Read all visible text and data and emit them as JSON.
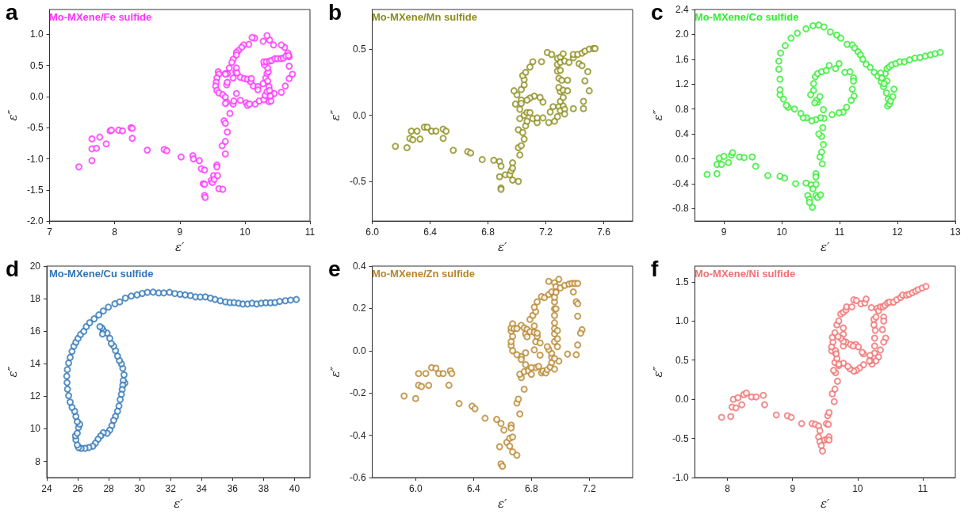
{
  "chart_data": [
    {
      "type": "scatter",
      "title": "a",
      "xlabel": "ε′",
      "ylabel": "ε″",
      "xlim": [
        7,
        11
      ],
      "ylim": [
        -2,
        1.4
      ],
      "xticks": [
        7,
        8,
        9,
        10,
        11
      ],
      "yticks": [
        {
          "value": -2,
          "label": "-2.0"
        },
        {
          "value": -1.5,
          "label": "-1.5"
        },
        {
          "value": -1,
          "label": "-1.0"
        },
        {
          "value": -0.5,
          "label": "-0.5"
        },
        {
          "value": 0,
          "label": "0.0"
        },
        {
          "value": 0.5,
          "label": "0.5"
        },
        {
          "value": 1,
          "label": "1.0"
        }
      ],
      "marker": "circle",
      "legend": "top left",
      "grid": false,
      "series": [
        {
          "name": "Mo-MXene/Fe sulfide",
          "color": "#ff33ff",
          "x": [
            7.45,
            7.65,
            7.65,
            7.65,
            7.72,
            7.77,
            7.87,
            7.93,
            7.95,
            8.06,
            8.12,
            8.25,
            8.27,
            8.27,
            8.5,
            8.76,
            8.8,
            9.02,
            9.2,
            9.21,
            9.3,
            9.33,
            9.38,
            9.36,
            9.38,
            9.38,
            9.39,
            9.48,
            9.5,
            9.52,
            9.53,
            9.57,
            9.57,
            9.58,
            9.6,
            9.66,
            9.65,
            9.7,
            9.7,
            9.73,
            9.68,
            9.7,
            9.77,
            9.82,
            9.83,
            9.87,
            9.93,
            10.02,
            10.04,
            10.07,
            10.16,
            10.22,
            10.29,
            10.31,
            10.34,
            10.37,
            10.4,
            10.41,
            10.45,
            10.56,
            10.62,
            10.68,
            10.73,
            10.68,
            10.68,
            10.66,
            10.61,
            10.56,
            10.44,
            10.38,
            10.34,
            10.28,
            10.15,
            10.11,
            10.06,
            9.98,
            9.95,
            9.9,
            9.87,
            9.87,
            9.82,
            9.8,
            9.76,
            9.73,
            9.7,
            9.59,
            9.6,
            9.57,
            9.56,
            9.55,
            9.57,
            9.6,
            9.66,
            9.7,
            9.72,
            9.7,
            9.72,
            9.73,
            9.7,
            9.82,
            9.86,
            9.87,
            9.88,
            9.93,
            9.99,
            10.04,
            10.09,
            10.1,
            10.13,
            10.2,
            10.2,
            10.28,
            10.32,
            10.34,
            10.36,
            10.35,
            10.3,
            10.29,
            10.33,
            10.38,
            10.41,
            10.46,
            10.5,
            10.55,
            10.59,
            10.63,
            10.67,
            10.35,
            10.37,
            10.38,
            10.39
          ],
          "values": [
            -1.13,
            -1.03,
            -0.84,
            -0.68,
            -0.83,
            -0.65,
            -0.76,
            -0.55,
            -0.54,
            -0.54,
            -0.55,
            -0.5,
            -0.51,
            -0.67,
            -0.86,
            -0.85,
            -0.87,
            -0.97,
            -0.95,
            -1.0,
            -1.03,
            -1.16,
            -1.18,
            -1.4,
            -1.41,
            -1.59,
            -1.62,
            -1.35,
            -1.38,
            -1.27,
            -1.33,
            -1.1,
            -1.13,
            -1.27,
            -1.48,
            -1.49,
            -0.79,
            -0.72,
            -0.92,
            -0.57,
            -0.39,
            -0.43,
            -0.27,
            -0.12,
            -0.07,
            0.05,
            -0.06,
            -0.1,
            -0.14,
            -0.12,
            -0.12,
            -0.07,
            -0.05,
            0.02,
            0.08,
            -0.08,
            -0.07,
            0.03,
            0.05,
            0.07,
            0.17,
            0.29,
            0.36,
            0.49,
            0.64,
            0.7,
            0.79,
            0.83,
            0.83,
            0.91,
            0.98,
            0.89,
            0.94,
            0.95,
            0.84,
            0.83,
            0.79,
            0.74,
            0.71,
            0.67,
            0.6,
            0.55,
            0.46,
            0.37,
            0.37,
            0.4,
            0.36,
            0.3,
            0.23,
            0.17,
            0.1,
            0.06,
            0.03,
            -0.01,
            -0.09,
            -0.11,
            0.19,
            0.23,
            0.36,
            0.3,
            0.4,
            0.46,
            0.38,
            0.31,
            0.29,
            0.28,
            0.24,
            0.29,
            0.17,
            0.16,
            0.11,
            0.21,
            0.3,
            0.37,
            0.4,
            0.46,
            0.51,
            0.56,
            0.56,
            0.57,
            0.58,
            0.61,
            0.61,
            0.61,
            0.62,
            0.65,
            0.66,
            0.25,
            0.16,
            0.1,
            0.01
          ]
        }
      ]
    },
    {
      "type": "scatter",
      "title": "b",
      "xlabel": "ε′",
      "ylabel": "ε″",
      "xlim": [
        6,
        7.8
      ],
      "ylim": [
        -0.8,
        0.8
      ],
      "xticks": [
        {
          "value": 6,
          "label": "6.0"
        },
        6.4,
        6.8,
        7.2,
        7.6
      ],
      "yticks": [
        -0.5,
        {
          "value": 0,
          "label": "0.0"
        },
        0.5
      ],
      "marker": "circle",
      "legend": "top left",
      "grid": false,
      "series": [
        {
          "name": "Mo-MXene/Mn sulfide",
          "color": "#8c8c1e",
          "x": [
            6.16,
            6.24,
            6.27,
            6.26,
            6.28,
            6.31,
            6.33,
            6.36,
            6.38,
            6.41,
            6.44,
            6.49,
            6.49,
            6.51,
            6.56,
            6.66,
            6.68,
            6.76,
            6.84,
            6.88,
            6.88,
            6.89,
            6.89,
            6.89,
            6.92,
            6.95,
            6.96,
            6.97,
            6.97,
            6.97,
            7.01,
            7.01,
            7.02,
            7.03,
            7.01,
            7.04,
            7.05,
            7.06,
            7.07,
            7.02,
            7.05,
            7.07,
            7.09,
            7.11,
            7.14,
            7.14,
            7.18,
            7.18,
            7.16,
            7.12,
            7.09,
            7.07,
            7.03,
            7.0,
            6.98,
            6.99,
            7.02,
            7.03,
            7.03,
            7.05,
            7.05,
            7.04,
            7.06,
            7.09,
            7.11,
            7.17,
            7.21,
            7.24,
            7.22,
            7.23,
            7.25,
            7.26,
            7.28,
            7.29,
            7.3,
            7.32,
            7.3,
            7.3,
            7.29,
            7.29,
            7.28,
            7.28,
            7.28,
            7.3,
            7.3,
            7.3,
            7.31,
            7.32,
            7.32,
            7.33,
            7.33,
            7.32,
            7.33,
            7.36,
            7.39,
            7.39,
            7.42,
            7.45,
            7.47,
            7.5,
            7.53,
            7.54,
            7.43,
            7.45,
            7.49,
            7.47,
            7.5,
            7.46,
            7.46,
            7.39,
            7.35,
            7.35
          ],
          "values": [
            -0.235,
            -0.245,
            -0.12,
            -0.175,
            -0.185,
            -0.12,
            -0.18,
            -0.09,
            -0.09,
            -0.12,
            -0.12,
            -0.175,
            -0.105,
            -0.12,
            -0.265,
            -0.275,
            -0.285,
            -0.335,
            -0.34,
            -0.35,
            -0.465,
            -0.385,
            -0.55,
            -0.56,
            -0.45,
            -0.45,
            -0.42,
            -0.36,
            -0.4,
            -0.49,
            -0.5,
            -0.245,
            -0.3,
            -0.23,
            -0.11,
            -0.13,
            -0.18,
            -0.08,
            -0.045,
            -0.025,
            0.0,
            0.02,
            0.02,
            -0.025,
            -0.055,
            -0.02,
            -0.02,
            0.1,
            0.135,
            0.145,
            0.13,
            0.115,
            0.115,
            0.155,
            0.185,
            0.085,
            0.045,
            0.09,
            0.195,
            0.23,
            0.27,
            0.3,
            0.325,
            0.365,
            0.405,
            0.405,
            0.475,
            0.46,
            -0.055,
            0.025,
            0.065,
            -0.045,
            -0.01,
            0.065,
            0.035,
            0.07,
            0.105,
            0.18,
            0.21,
            0.28,
            0.335,
            0.385,
            0.43,
            0.44,
            0.4,
            0.34,
            0.265,
            0.19,
            0.135,
            0.045,
            0.01,
            0.465,
            0.41,
            0.4,
            0.435,
            0.46,
            0.46,
            0.47,
            0.485,
            0.5,
            0.505,
            0.505,
            0.39,
            0.375,
            0.33,
            0.26,
            0.185,
            0.105,
            0.05,
            0.05,
            0.185,
            0.265
          ]
        }
      ]
    },
    {
      "type": "scatter",
      "title": "c",
      "xlabel": "ε′",
      "ylabel": "ε″",
      "xlim": [
        8.5,
        13
      ],
      "ylim": [
        -1,
        2.4
      ],
      "xticks": [
        9,
        10,
        11,
        12,
        13
      ],
      "yticks": [
        -0.8,
        -0.4,
        {
          "value": 0,
          "label": "0.0"
        },
        0.4,
        0.8,
        1.2,
        1.6,
        {
          "value": 2,
          "label": "2.0"
        },
        2.4
      ],
      "marker": "circle",
      "legend": "top left",
      "grid": false,
      "series": [
        {
          "name": "Mo-MXene/Co sulfide",
          "color": "#33ee33",
          "x": [
            8.71,
            8.88,
            8.88,
            8.96,
            8.92,
            9.0,
            9.08,
            9.13,
            9.15,
            9.27,
            9.35,
            9.49,
            9.55,
            9.76,
            9.97,
            10.05,
            10.24,
            10.42,
            10.45,
            10.48,
            10.48,
            10.53,
            10.51,
            10.54,
            10.59,
            10.59,
            10.62,
            10.67,
            10.59,
            10.59,
            10.7,
            10.66,
            10.69,
            10.72,
            10.71,
            10.69,
            10.64,
            10.73,
            10.72,
            10.67,
            10.59,
            10.52,
            10.43,
            10.37,
            10.33,
            10.22,
            10.11,
            10.08,
            10.03,
            9.97,
            9.97,
            9.97,
            9.95,
            9.95,
            9.98,
            10.06,
            10.16,
            10.27,
            10.42,
            10.54,
            10.64,
            10.73,
            10.84,
            10.95,
            11.02,
            11.13,
            11.22,
            11.26,
            11.32,
            11.36,
            11.4,
            11.46,
            11.53,
            11.6,
            11.66,
            11.72,
            11.76,
            11.81,
            11.84,
            11.83,
            11.86,
            11.88,
            11.92,
            11.94,
            11.82,
            11.79,
            11.82,
            11.86,
            11.9,
            11.97,
            12.04,
            12.12,
            12.21,
            12.3,
            12.39,
            12.48,
            12.57,
            12.65,
            12.74,
            11.71,
            11.73,
            11.77,
            10.55,
            10.5,
            10.55,
            10.58,
            10.62,
            10.69,
            10.77,
            10.82,
            10.93,
            10.99,
            11.09,
            11.18,
            11.24,
            11.24,
            11.22,
            11.25,
            11.2,
            11.12,
            11.06,
            10.99,
            10.87,
            10.62,
            10.6,
            10.66,
            10.57
          ],
          "values": [
            -0.25,
            -0.24,
            -0.09,
            -0.09,
            0.01,
            0.04,
            -0.06,
            0.06,
            0.1,
            0.03,
            0.02,
            0.03,
            -0.12,
            -0.27,
            -0.28,
            -0.31,
            -0.4,
            -0.39,
            -0.59,
            -0.65,
            -0.7,
            -0.78,
            -0.42,
            -0.48,
            -0.41,
            -0.59,
            -0.62,
            -0.58,
            -0.24,
            -0.29,
            -0.08,
            0.03,
            0.11,
            0.23,
            0.5,
            0.36,
            0.4,
            0.65,
            0.79,
            0.66,
            0.63,
            0.61,
            0.66,
            0.66,
            0.73,
            0.8,
            0.83,
            0.86,
            0.96,
            1.03,
            1.11,
            1.28,
            1.44,
            1.57,
            1.7,
            1.82,
            1.94,
            2.02,
            2.09,
            2.14,
            2.15,
            2.12,
            2.04,
            1.99,
            1.94,
            1.84,
            1.83,
            1.78,
            1.72,
            1.67,
            1.6,
            1.52,
            1.47,
            1.39,
            1.33,
            1.24,
            1.16,
            1.06,
            0.96,
            0.85,
            0.88,
            0.93,
            1.0,
            1.12,
            1.25,
            1.37,
            1.45,
            1.48,
            1.51,
            1.53,
            1.56,
            1.56,
            1.59,
            1.62,
            1.63,
            1.65,
            1.67,
            1.69,
            1.71,
            1.38,
            1.3,
            1.21,
            1.1,
            1.03,
            1.21,
            1.32,
            1.37,
            1.4,
            1.42,
            1.5,
            1.45,
            1.53,
            1.39,
            1.4,
            1.3,
            1.25,
            1.12,
            1.01,
            0.94,
            0.83,
            0.75,
            0.74,
            0.71,
            0.91,
            0.94,
            1.0,
            0.9
          ]
        }
      ]
    },
    {
      "type": "scatter",
      "title": "d",
      "xlabel": "ε′",
      "ylabel": "ε″",
      "xlim": [
        24,
        41
      ],
      "ylim": [
        7,
        20
      ],
      "xticks": [
        24,
        26,
        28,
        30,
        32,
        34,
        36,
        38,
        40
      ],
      "yticks": [
        8,
        10,
        12,
        14,
        16,
        18,
        20
      ],
      "marker": "circle",
      "legend": "top left",
      "grid": false,
      "series": [
        {
          "name": "Mo-MXene/Cu sulfide",
          "color": "#2e75b6",
          "x": [
            29.04,
            28.94,
            28.99,
            28.91,
            28.82,
            28.69,
            28.57,
            28.44,
            28.32,
            28.17,
            28.07,
            27.9,
            27.65,
            27.56,
            27.43,
            27.6,
            28.91,
            28.87,
            28.82,
            28.74,
            28.66,
            28.57,
            28.44,
            28.32,
            28.2,
            28.07,
            27.9,
            27.65,
            27.48,
            27.31,
            27.14,
            26.97,
            26.72,
            26.47,
            26.22,
            26.05,
            25.97,
            25.88,
            25.85,
            25.97,
            26.05,
            26.13,
            25.97,
            25.88,
            25.8,
            25.63,
            25.51,
            25.41,
            25.34,
            25.31,
            25.29,
            25.33,
            25.41,
            25.51,
            25.63,
            25.75,
            25.88,
            26.02,
            26.18,
            26.39,
            26.55,
            26.77,
            27.06,
            27.36,
            27.65,
            27.98,
            28.4,
            28.71,
            29.08,
            29.46,
            29.83,
            30.17,
            30.5,
            30.87,
            31.23,
            31.56,
            31.93,
            32.27,
            32.61,
            32.94,
            33.28,
            33.61,
            33.92,
            34.24,
            34.57,
            34.87,
            35.21,
            35.55,
            35.83,
            36.1,
            36.39,
            36.67,
            36.97,
            37.26,
            37.56,
            37.85,
            38.15,
            38.45,
            38.74,
            39.04,
            39.41,
            39.75,
            40.12
          ],
          "values": [
            12.81,
            12.97,
            13.32,
            13.72,
            14.0,
            14.2,
            14.47,
            14.81,
            15.08,
            15.24,
            15.56,
            15.88,
            16.04,
            16.2,
            16.28,
            15.83,
            12.68,
            12.41,
            12.12,
            11.8,
            11.4,
            11.08,
            10.76,
            10.52,
            10.2,
            9.92,
            9.73,
            9.76,
            9.57,
            9.36,
            9.12,
            8.93,
            8.85,
            8.8,
            8.8,
            8.85,
            9.01,
            9.33,
            9.57,
            9.73,
            10.08,
            10.28,
            10.44,
            10.76,
            11.08,
            11.32,
            11.64,
            12.04,
            12.44,
            12.84,
            13.24,
            13.64,
            14.04,
            14.39,
            14.76,
            15.08,
            15.32,
            15.56,
            15.8,
            15.99,
            16.28,
            16.52,
            16.76,
            17.0,
            17.24,
            17.48,
            17.68,
            17.8,
            18.03,
            18.16,
            18.23,
            18.32,
            18.39,
            18.4,
            18.35,
            18.35,
            18.39,
            18.31,
            18.27,
            18.23,
            18.19,
            18.11,
            18.1,
            18.11,
            18.03,
            17.95,
            17.87,
            17.8,
            17.76,
            17.76,
            17.72,
            17.67,
            17.67,
            17.72,
            17.67,
            17.72,
            17.75,
            17.75,
            17.76,
            17.83,
            17.87,
            17.91,
            17.95
          ]
        }
      ]
    },
    {
      "type": "scatter",
      "title": "e",
      "xlabel": "ε′",
      "ylabel": "ε″",
      "xlim": [
        5.7,
        7.5
      ],
      "ylim": [
        -0.6,
        0.4
      ],
      "xticks": [
        {
          "value": 6,
          "label": "6.0"
        },
        6.4,
        6.8,
        7.2
      ],
      "yticks": [
        -0.6,
        -0.4,
        -0.2,
        {
          "value": 0,
          "label": "0.0"
        },
        0.2,
        0.4
      ],
      "marker": "circle",
      "legend": "top left",
      "grid": false,
      "series": [
        {
          "name": "Mo-MXene/Zn sulfide",
          "color": "#b8862e",
          "x": [
            5.92,
            6.0,
            6.02,
            6.04,
            6.02,
            6.07,
            6.09,
            6.11,
            6.14,
            6.16,
            6.19,
            6.23,
            6.24,
            6.25,
            6.3,
            6.39,
            6.41,
            6.48,
            6.56,
            6.59,
            6.58,
            6.61,
            6.59,
            6.6,
            6.63,
            6.65,
            6.65,
            6.66,
            6.66,
            6.67,
            6.67,
            6.7,
            6.72,
            6.7,
            6.71,
            6.75,
            6.73,
            6.72,
            6.75,
            6.76,
            6.78,
            6.76,
            6.73,
            6.73,
            6.7,
            6.67,
            6.66,
            6.66,
            6.67,
            6.66,
            6.66,
            6.67,
            6.68,
            6.7,
            6.73,
            6.75,
            6.76,
            6.77,
            6.77,
            6.79,
            6.82,
            6.83,
            6.82,
            6.83,
            6.8,
            6.8,
            6.85,
            6.87,
            6.88,
            6.9,
            6.91,
            6.93,
            6.94,
            6.94,
            6.94,
            6.92,
            6.91,
            6.86,
            6.86,
            6.84,
            6.84,
            6.82,
            6.79,
            6.81,
            6.83,
            6.82,
            6.84,
            6.87,
            6.89,
            6.92,
            6.94,
            6.92,
            6.96,
            6.99,
            6.97,
            7.0,
            7.03,
            7.06,
            7.08,
            7.1,
            7.12,
            7.09,
            7.11,
            7.12,
            7.12,
            7.15,
            7.14,
            7.12,
            7.11,
            7.05,
            6.99,
            6.96,
            6.96,
            6.96,
            6.96,
            6.96,
            6.96,
            6.96,
            6.96,
            6.96,
            6.96,
            6.97,
            6.98,
            6.98,
            6.98,
            6.97
          ],
          "values": [
            -0.214,
            -0.226,
            -0.163,
            -0.169,
            -0.108,
            -0.108,
            -0.164,
            -0.08,
            -0.083,
            -0.108,
            -0.108,
            -0.163,
            -0.095,
            -0.108,
            -0.25,
            -0.262,
            -0.274,
            -0.319,
            -0.325,
            -0.344,
            -0.454,
            -0.375,
            -0.535,
            -0.546,
            -0.433,
            -0.451,
            -0.414,
            -0.352,
            -0.365,
            -0.408,
            -0.478,
            -0.494,
            -0.299,
            -0.247,
            -0.229,
            -0.182,
            -0.127,
            -0.111,
            -0.099,
            -0.066,
            -0.095,
            -0.01,
            -0.028,
            -0.041,
            -0.019,
            0.0,
            0.025,
            0.043,
            0.068,
            0.093,
            0.108,
            0.127,
            0.105,
            0.105,
            0.12,
            0.108,
            0.08,
            0.066,
            0.101,
            0.09,
            0.087,
            0.043,
            0.004,
            -0.08,
            -0.08,
            -0.111,
            -0.074,
            -0.105,
            -0.096,
            -0.105,
            -0.09,
            -0.077,
            -0.056,
            -0.031,
            -0.012,
            0.006,
            0.019,
            -0.021,
            0.037,
            0.068,
            0.083,
            0.117,
            0.148,
            0.167,
            0.185,
            0.206,
            0.231,
            0.256,
            0.251,
            0.266,
            0.278,
            0.328,
            0.321,
            0.338,
            0.303,
            0.297,
            0.309,
            0.315,
            0.318,
            0.318,
            0.318,
            0.278,
            0.231,
            0.222,
            0.163,
            0.099,
            0.083,
            0.027,
            -0.019,
            -0.016,
            -0.049,
            -0.037,
            -0.087,
            0.043,
            0.08,
            0.105,
            0.132,
            0.167,
            0.198,
            0.231,
            0.253,
            0.276,
            0.019,
            0.056,
            0.095,
            0.198
          ]
        }
      ]
    },
    {
      "type": "scatter",
      "title": "f",
      "xlabel": "ε′",
      "ylabel": "ε″",
      "xlim": [
        7.5,
        11.5
      ],
      "ylim": [
        -1,
        1.7
      ],
      "xticks": [
        8,
        9,
        10,
        11
      ],
      "yticks": [
        {
          "value": -1,
          "label": "-1.0"
        },
        -0.5,
        {
          "value": 0,
          "label": "0.0"
        },
        0.5,
        {
          "value": 1,
          "label": "1.0"
        },
        1.5
      ],
      "marker": "circle",
      "legend": "top left",
      "grid": false,
      "series": [
        {
          "name": "Mo-MXene/Ni sulfide",
          "color": "#f07070",
          "x": [
            7.91,
            8.05,
            8.07,
            8.13,
            8.09,
            8.16,
            8.22,
            8.25,
            8.29,
            8.37,
            8.44,
            8.55,
            8.57,
            8.75,
            8.92,
            8.98,
            9.14,
            9.3,
            9.35,
            9.4,
            9.42,
            9.4,
            9.42,
            9.44,
            9.46,
            9.49,
            9.53,
            9.56,
            9.56,
            9.52,
            9.55,
            9.54,
            9.56,
            9.64,
            9.61,
            9.65,
            9.69,
            9.66,
            9.63,
            9.65,
            9.71,
            9.68,
            9.66,
            9.6,
            9.6,
            9.62,
            9.61,
            9.65,
            9.68,
            9.71,
            9.74,
            9.78,
            9.82,
            9.83,
            9.91,
            9.94,
            9.98,
            10.05,
            10.11,
            10.13,
            10.21,
            10.25,
            10.28,
            10.3,
            10.32,
            10.35,
            10.39,
            10.42,
            10.46,
            10.49,
            10.55,
            10.6,
            10.66,
            10.69,
            10.75,
            10.79,
            10.84,
            10.89,
            10.93,
            10.99,
            11.05,
            10.4,
            10.4,
            10.38,
            10.43,
            10.4,
            10.35,
            10.32,
            10.28,
            10.26,
            10.26,
            10.26,
            10.27,
            10.25,
            10.22,
            10.2,
            10.19,
            10.18,
            10.09,
            10.07,
            10.09,
            10.03,
            9.98,
            9.94,
            9.88,
            9.85,
            9.78,
            9.71,
            9.78,
            9.82,
            9.89,
            9.97,
            10.01,
            9.93,
            9.78,
            9.78,
            9.78,
            9.74,
            9.7,
            9.66,
            9.67
          ],
          "values": [
            -0.23,
            -0.22,
            -0.1,
            -0.11,
            0.0,
            0.02,
            -0.07,
            0.06,
            0.08,
            0.03,
            0.03,
            0.05,
            -0.07,
            -0.2,
            -0.21,
            -0.23,
            -0.31,
            -0.31,
            -0.32,
            -0.34,
            -0.4,
            -0.48,
            -0.54,
            -0.59,
            -0.66,
            -0.52,
            -0.51,
            -0.48,
            -0.52,
            -0.31,
            -0.32,
            -0.21,
            -0.17,
            -0.03,
            0.07,
            0.13,
            0.23,
            0.34,
            0.37,
            0.47,
            0.43,
            0.52,
            0.59,
            0.62,
            0.67,
            0.73,
            0.79,
            0.85,
            0.95,
            1.0,
            1.09,
            1.11,
            1.14,
            1.18,
            1.18,
            1.27,
            1.26,
            1.22,
            1.23,
            1.28,
            1.17,
            1.02,
            1.05,
            1.16,
            1.13,
            1.18,
            1.18,
            1.2,
            1.23,
            1.24,
            1.24,
            1.27,
            1.3,
            1.33,
            1.33,
            1.34,
            1.36,
            1.38,
            1.4,
            1.42,
            1.44,
            1.05,
            1.0,
            0.89,
            0.78,
            0.73,
            0.63,
            0.54,
            0.49,
            0.59,
            0.68,
            0.78,
            0.88,
            0.95,
            0.45,
            0.49,
            0.56,
            0.49,
            0.58,
            0.6,
            0.44,
            0.4,
            0.37,
            0.36,
            0.39,
            0.42,
            0.46,
            0.45,
            0.68,
            0.73,
            0.7,
            0.7,
            0.67,
            0.68,
            0.74,
            0.83,
            0.91,
            0.78,
            0.8,
            0.62,
            0.58
          ]
        }
      ]
    }
  ]
}
